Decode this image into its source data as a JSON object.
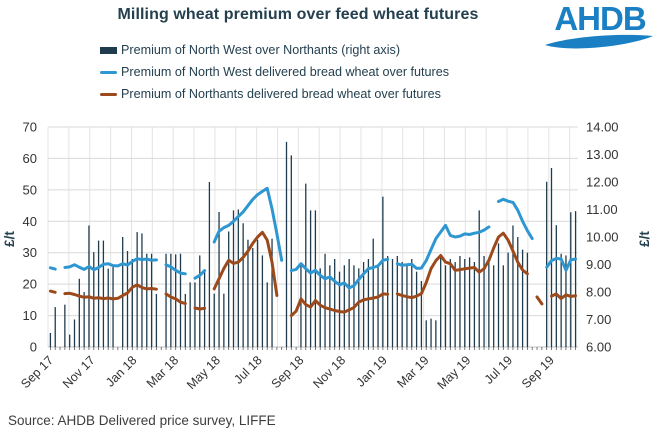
{
  "header": {
    "title": "Milling wheat premium over feed wheat futures",
    "logo_text": "AHDB"
  },
  "source": "Source: AHDB Delivered price survey, LIFFE",
  "legend": {
    "items": [
      {
        "label": "Premium of North West over Northants (right axis)",
        "swatch": "bar"
      },
      {
        "label": "Premium of North West delivered bread wheat over futures",
        "swatch": "line"
      },
      {
        "label": "Premium of Northants delivered bread wheat over futures",
        "swatch": "line"
      }
    ]
  },
  "colors": {
    "bars": "#1f3b4d",
    "nw_line": "#2e97d1",
    "northants_line": "#9c4a1b",
    "grid": "#d9d9d9",
    "vgrid": "#e4e4e4",
    "axis_line": "#bfbfbf",
    "tick_text": "#333333",
    "logo_blue": "#1b7fc4",
    "title_text": "#24404f"
  },
  "chart_data": {
    "type": "bar",
    "subtype": "combo-bar-plus-two-lines",
    "title": "Milling wheat premium over feed wheat futures",
    "left_axis": {
      "label": "£/t",
      "min": 0,
      "max": 70,
      "ticks": [
        0,
        10,
        20,
        30,
        40,
        50,
        60,
        70
      ]
    },
    "right_axis": {
      "label": "£/t",
      "min": 6,
      "max": 14,
      "tick_labels": [
        "6.00",
        "7.00",
        "8.00",
        "9.00",
        "10.00",
        "11.00",
        "12.00",
        "13.00",
        "14.00"
      ]
    },
    "x_axis": {
      "tick_labels": [
        "Sep 17",
        "Nov 17",
        "Jan 18",
        "Mar 18",
        "May 18",
        "Jul 18",
        "Sep 18",
        "Nov 18",
        "Jan 19",
        "Mar 19",
        "May 19",
        "Jul 19",
        "Sep 19"
      ],
      "months_total": 25,
      "weeks_total": 110,
      "grid_vertical": true,
      "grid_horizontal": true
    },
    "series": [
      {
        "name": "Premium of North West over Northants (right axis)",
        "type": "bar",
        "axis": "right",
        "color": "#1f3b4d",
        "values": [
          6.51,
          7.45,
          null,
          7.54,
          6.45,
          7.0,
          8.48,
          8.0,
          10.42,
          9.45,
          9.87,
          9.87,
          8.85,
          8.97,
          null,
          10.0,
          9.49,
          9.2,
          10.18,
          10.13,
          9.39,
          9.39,
          7.93,
          null,
          9.39,
          9.39,
          9.37,
          9.39,
          7.93,
          8.35,
          8.35,
          9.33,
          8.74,
          12.0,
          7.94,
          10.91,
          7.94,
          10.2,
          10.97,
          11.0,
          10.5,
          9.9,
          9.6,
          9.9,
          9.33,
          8.35,
          9.94,
          null,
          null,
          13.46,
          12.97,
          null,
          9.03,
          11.94,
          10.97,
          10.97,
          8.86,
          9.39,
          8.97,
          9.2,
          8.74,
          8.97,
          9.2,
          8.97,
          8.86,
          9.09,
          9.2,
          9.94,
          8.97,
          11.47,
          9.31,
          9.2,
          9.31,
          9.09,
          8.97,
          9.2,
          8.74,
          8.4,
          6.97,
          7.03,
          6.97,
          9.31,
          8.97,
          9.2,
          9.09,
          9.31,
          9.2,
          9.26,
          9.09,
          10.97,
          9.31,
          9.2,
          8.97,
          9.77,
          8.97,
          9.43,
          10.42,
          10.0,
          9.54,
          9.43,
          null,
          null,
          null,
          12.01,
          12.51,
          10.43,
          9.39,
          9.33,
          10.9,
          10.94
        ]
      },
      {
        "name": "Premium of North West delivered bread wheat over futures",
        "type": "line",
        "axis": "left",
        "color": "#2e97d1",
        "values": [
          25.2,
          24.8,
          null,
          25.3,
          25.5,
          26.2,
          25.4,
          24.7,
          25.6,
          24.6,
          25.3,
          26.3,
          26.5,
          25.9,
          25.8,
          26.5,
          26.1,
          27.2,
          28.1,
          27.8,
          28.0,
          27.6,
          27.7,
          null,
          26.2,
          25.5,
          24.4,
          23.5,
          23.3,
          null,
          21.9,
          22.8,
          24.3,
          null,
          33.4,
          36.8,
          38.0,
          38.7,
          40.0,
          41.5,
          43.0,
          45.0,
          47.0,
          48.5,
          49.5,
          50.5,
          44.0,
          36.0,
          27.6,
          null,
          24.3,
          24.7,
          26.5,
          24.9,
          23.5,
          24.4,
          22.8,
          21.7,
          22.3,
          20.9,
          19.8,
          20.4,
          18.8,
          19.5,
          21.5,
          23.3,
          24.9,
          25.3,
          25.8,
          27.6,
          27.9,
          null,
          26.5,
          26.0,
          26.2,
          26.3,
          25.0,
          25.1,
          27.5,
          31.0,
          34.5,
          36.6,
          38.7,
          35.5,
          35.0,
          35.3,
          36.0,
          35.8,
          36.2,
          36.5,
          37.2,
          38.2,
          null,
          46.3,
          47.0,
          46.4,
          46.0,
          43.5,
          40.0,
          37.0,
          34.5,
          null,
          null,
          25.4,
          27.5,
          28.2,
          28.0,
          24.4,
          27.7,
          28.0
        ]
      },
      {
        "name": "Premium of Northants delivered bread wheat over futures",
        "type": "line",
        "axis": "left",
        "color": "#9c4a1b",
        "values": [
          17.8,
          17.4,
          null,
          17.0,
          17.1,
          16.7,
          16.2,
          15.8,
          16.0,
          15.5,
          15.7,
          15.4,
          15.6,
          15.3,
          15.5,
          16.4,
          17.2,
          19.0,
          19.8,
          18.9,
          18.5,
          18.6,
          18.4,
          null,
          16.9,
          15.9,
          15.3,
          14.3,
          13.8,
          null,
          12.4,
          12.1,
          12.3,
          null,
          18.5,
          21.7,
          25.0,
          27.6,
          26.6,
          27.0,
          28.5,
          30.5,
          33.0,
          35.0,
          36.5,
          34.0,
          27.0,
          16.4,
          null,
          null,
          10.0,
          11.4,
          15.3,
          13.5,
          12.7,
          14.8,
          13.3,
          12.5,
          12.1,
          11.6,
          11.3,
          11.1,
          11.8,
          12.6,
          14.3,
          15.0,
          15.3,
          15.6,
          15.9,
          16.9,
          16.8,
          null,
          16.9,
          16.4,
          16.0,
          15.7,
          16.2,
          17.0,
          20.5,
          24.9,
          27.5,
          29.1,
          27.0,
          26.5,
          24.4,
          24.6,
          24.9,
          25.1,
          25.3,
          23.8,
          24.9,
          27.6,
          31.5,
          35.0,
          36.2,
          34.0,
          30.5,
          27.0,
          24.5,
          23.3,
          null,
          15.9,
          13.7,
          null,
          16.2,
          16.9,
          15.4,
          16.6,
          16.1,
          16.3
        ]
      }
    ]
  }
}
